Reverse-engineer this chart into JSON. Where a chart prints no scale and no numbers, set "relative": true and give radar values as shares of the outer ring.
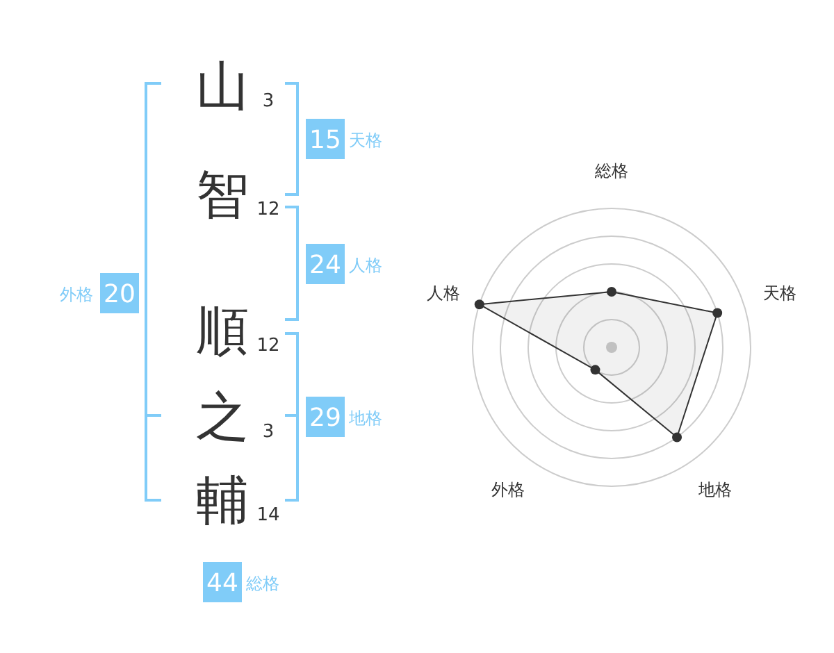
{
  "chart_data": [
    {
      "type": "other",
      "categories": [
        "山",
        "智",
        "順",
        "之",
        "輔"
      ],
      "values": [
        3,
        12,
        12,
        3,
        14
      ],
      "data_labels": true,
      "color": "#80ccf8",
      "annotations": [
        "15",
        "天格",
        "24",
        "人格",
        "29",
        "地格",
        "20",
        "外格",
        "44",
        "総格"
      ]
    },
    {
      "type": "radar",
      "categories": [
        "総格",
        "天格",
        "地格",
        "外格",
        "人格"
      ],
      "relative": true,
      "grid": true,
      "marker": "circle",
      "series": [
        {
          "color": "#333333",
          "values": [
            0.4,
            0.8,
            0.8,
            0.2,
            1.0
          ]
        }
      ]
    }
  ]
}
